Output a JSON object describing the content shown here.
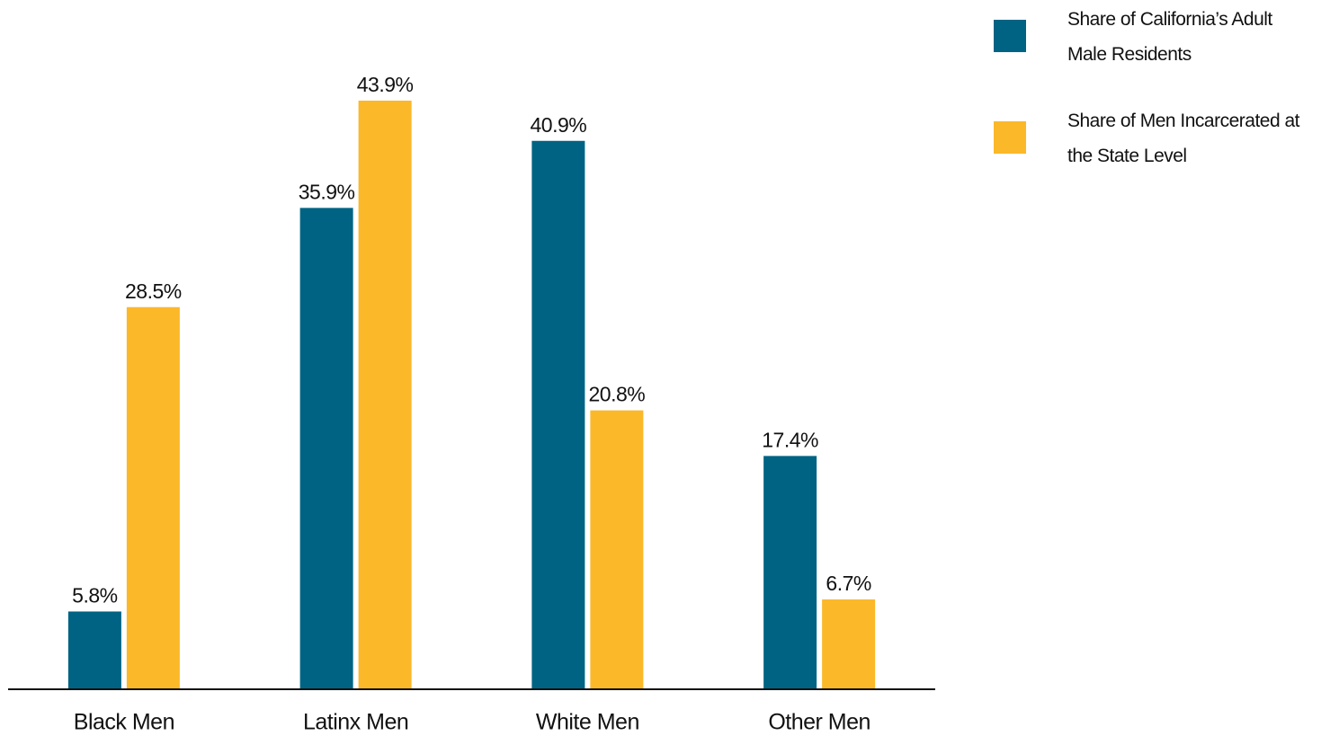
{
  "chart_data": {
    "type": "bar",
    "categories": [
      "Black Men",
      "Latinx Men",
      "White Men",
      "Other Men"
    ],
    "series": [
      {
        "name": "Share of California’s Adult Male Residents",
        "color": "#006384",
        "values": [
          5.8,
          35.9,
          40.9,
          17.4
        ],
        "value_labels": [
          "5.8%",
          "35.9%",
          "40.9%",
          "17.4%"
        ]
      },
      {
        "name": "Share of Men Incarcerated at the State Level",
        "color": "#fbb829",
        "values": [
          28.5,
          43.9,
          20.8,
          6.7
        ],
        "value_labels": [
          "28.5%",
          "43.9%",
          "20.8%",
          "6.7%"
        ]
      }
    ],
    "ylim": [
      0,
      44
    ],
    "legend": "top-right"
  }
}
